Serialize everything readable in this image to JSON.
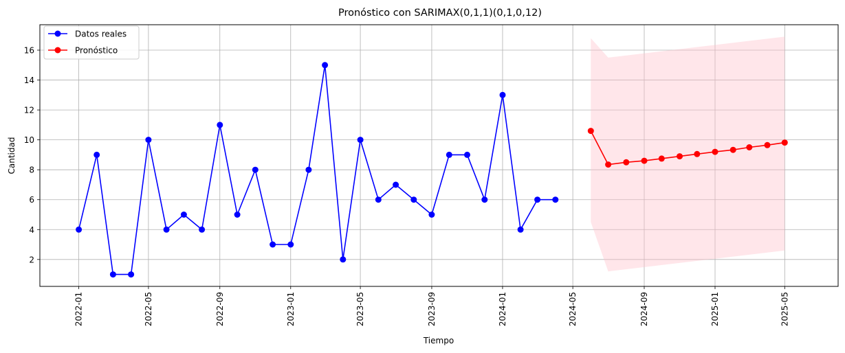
{
  "chart_data": {
    "type": "line",
    "title": "Pronóstico con SARIMAX(0,1,1)(0,1,0,12)",
    "xlabel": "Tiempo",
    "ylabel": "Cantidad",
    "x_range": [
      "2021-10-26",
      "2025-08-01"
    ],
    "ylim": [
      0.2,
      17.7
    ],
    "y_ticks": [
      2,
      4,
      6,
      8,
      10,
      12,
      14,
      16
    ],
    "x_ticks": [
      "2022-01",
      "2022-05",
      "2022-09",
      "2023-01",
      "2023-05",
      "2023-09",
      "2024-01",
      "2024-05",
      "2024-09",
      "2025-01",
      "2025-05"
    ],
    "grid": true,
    "legend_position": "top-left",
    "series": [
      {
        "name": "Datos reales",
        "color": "#0000ff",
        "x": [
          "2022-01",
          "2022-02",
          "2022-03",
          "2022-04",
          "2022-05",
          "2022-06",
          "2022-07",
          "2022-08",
          "2022-09",
          "2022-10",
          "2022-11",
          "2022-12",
          "2023-01",
          "2023-02",
          "2023-03",
          "2023-04",
          "2023-05",
          "2023-06",
          "2023-07",
          "2023-08",
          "2023-09",
          "2023-10",
          "2023-11",
          "2023-12",
          "2024-01",
          "2024-02",
          "2024-03",
          "2024-04"
        ],
        "values": [
          4,
          9,
          1,
          1,
          10,
          4,
          5,
          4,
          11,
          5,
          8,
          3,
          3,
          8,
          15,
          2,
          10,
          6,
          7,
          6,
          5,
          9,
          9,
          6,
          13,
          4,
          6,
          6
        ]
      },
      {
        "name": "Pronóstico",
        "color": "#ff0000",
        "x": [
          "2024-06",
          "2024-07",
          "2024-08",
          "2024-09",
          "2024-10",
          "2024-11",
          "2024-12",
          "2025-01",
          "2025-02",
          "2025-03",
          "2025-04",
          "2025-05"
        ],
        "values": [
          10.6,
          8.35,
          8.5,
          8.6,
          8.75,
          8.9,
          9.05,
          9.2,
          9.33,
          9.5,
          9.65,
          9.82
        ]
      }
    ],
    "confidence_band": {
      "color": "#ffc0cb",
      "x": [
        "2024-06",
        "2024-07",
        "2025-05"
      ],
      "lower": [
        4.5,
        1.2,
        2.6
      ],
      "upper": [
        16.8,
        15.5,
        16.9
      ]
    }
  }
}
